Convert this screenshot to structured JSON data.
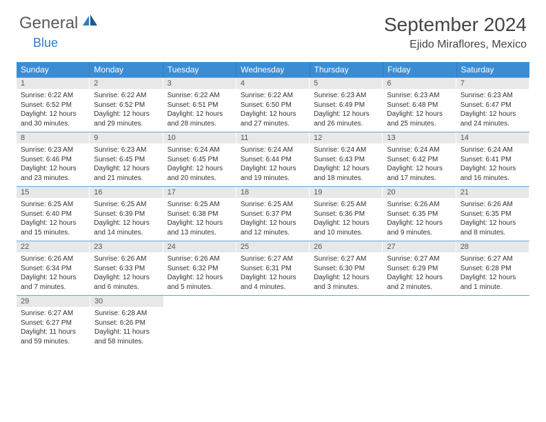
{
  "logo": {
    "text1": "General",
    "text2": "Blue",
    "text_color": "#5a5a5a",
    "accent_color": "#2e7cc4"
  },
  "title": "September 2024",
  "location": "Ejido Miraflores, Mexico",
  "header_bg": "#3a8dd4",
  "daynum_bg": "#e8e8e8",
  "row_border": "#6da4d4",
  "weekdays": [
    "Sunday",
    "Monday",
    "Tuesday",
    "Wednesday",
    "Thursday",
    "Friday",
    "Saturday"
  ],
  "days": [
    {
      "n": "1",
      "sunrise": "Sunrise: 6:22 AM",
      "sunset": "Sunset: 6:52 PM",
      "day1": "Daylight: 12 hours",
      "day2": "and 30 minutes."
    },
    {
      "n": "2",
      "sunrise": "Sunrise: 6:22 AM",
      "sunset": "Sunset: 6:52 PM",
      "day1": "Daylight: 12 hours",
      "day2": "and 29 minutes."
    },
    {
      "n": "3",
      "sunrise": "Sunrise: 6:22 AM",
      "sunset": "Sunset: 6:51 PM",
      "day1": "Daylight: 12 hours",
      "day2": "and 28 minutes."
    },
    {
      "n": "4",
      "sunrise": "Sunrise: 6:22 AM",
      "sunset": "Sunset: 6:50 PM",
      "day1": "Daylight: 12 hours",
      "day2": "and 27 minutes."
    },
    {
      "n": "5",
      "sunrise": "Sunrise: 6:23 AM",
      "sunset": "Sunset: 6:49 PM",
      "day1": "Daylight: 12 hours",
      "day2": "and 26 minutes."
    },
    {
      "n": "6",
      "sunrise": "Sunrise: 6:23 AM",
      "sunset": "Sunset: 6:48 PM",
      "day1": "Daylight: 12 hours",
      "day2": "and 25 minutes."
    },
    {
      "n": "7",
      "sunrise": "Sunrise: 6:23 AM",
      "sunset": "Sunset: 6:47 PM",
      "day1": "Daylight: 12 hours",
      "day2": "and 24 minutes."
    },
    {
      "n": "8",
      "sunrise": "Sunrise: 6:23 AM",
      "sunset": "Sunset: 6:46 PM",
      "day1": "Daylight: 12 hours",
      "day2": "and 23 minutes."
    },
    {
      "n": "9",
      "sunrise": "Sunrise: 6:23 AM",
      "sunset": "Sunset: 6:45 PM",
      "day1": "Daylight: 12 hours",
      "day2": "and 21 minutes."
    },
    {
      "n": "10",
      "sunrise": "Sunrise: 6:24 AM",
      "sunset": "Sunset: 6:45 PM",
      "day1": "Daylight: 12 hours",
      "day2": "and 20 minutes."
    },
    {
      "n": "11",
      "sunrise": "Sunrise: 6:24 AM",
      "sunset": "Sunset: 6:44 PM",
      "day1": "Daylight: 12 hours",
      "day2": "and 19 minutes."
    },
    {
      "n": "12",
      "sunrise": "Sunrise: 6:24 AM",
      "sunset": "Sunset: 6:43 PM",
      "day1": "Daylight: 12 hours",
      "day2": "and 18 minutes."
    },
    {
      "n": "13",
      "sunrise": "Sunrise: 6:24 AM",
      "sunset": "Sunset: 6:42 PM",
      "day1": "Daylight: 12 hours",
      "day2": "and 17 minutes."
    },
    {
      "n": "14",
      "sunrise": "Sunrise: 6:24 AM",
      "sunset": "Sunset: 6:41 PM",
      "day1": "Daylight: 12 hours",
      "day2": "and 16 minutes."
    },
    {
      "n": "15",
      "sunrise": "Sunrise: 6:25 AM",
      "sunset": "Sunset: 6:40 PM",
      "day1": "Daylight: 12 hours",
      "day2": "and 15 minutes."
    },
    {
      "n": "16",
      "sunrise": "Sunrise: 6:25 AM",
      "sunset": "Sunset: 6:39 PM",
      "day1": "Daylight: 12 hours",
      "day2": "and 14 minutes."
    },
    {
      "n": "17",
      "sunrise": "Sunrise: 6:25 AM",
      "sunset": "Sunset: 6:38 PM",
      "day1": "Daylight: 12 hours",
      "day2": "and 13 minutes."
    },
    {
      "n": "18",
      "sunrise": "Sunrise: 6:25 AM",
      "sunset": "Sunset: 6:37 PM",
      "day1": "Daylight: 12 hours",
      "day2": "and 12 minutes."
    },
    {
      "n": "19",
      "sunrise": "Sunrise: 6:25 AM",
      "sunset": "Sunset: 6:36 PM",
      "day1": "Daylight: 12 hours",
      "day2": "and 10 minutes."
    },
    {
      "n": "20",
      "sunrise": "Sunrise: 6:26 AM",
      "sunset": "Sunset: 6:35 PM",
      "day1": "Daylight: 12 hours",
      "day2": "and 9 minutes."
    },
    {
      "n": "21",
      "sunrise": "Sunrise: 6:26 AM",
      "sunset": "Sunset: 6:35 PM",
      "day1": "Daylight: 12 hours",
      "day2": "and 8 minutes."
    },
    {
      "n": "22",
      "sunrise": "Sunrise: 6:26 AM",
      "sunset": "Sunset: 6:34 PM",
      "day1": "Daylight: 12 hours",
      "day2": "and 7 minutes."
    },
    {
      "n": "23",
      "sunrise": "Sunrise: 6:26 AM",
      "sunset": "Sunset: 6:33 PM",
      "day1": "Daylight: 12 hours",
      "day2": "and 6 minutes."
    },
    {
      "n": "24",
      "sunrise": "Sunrise: 6:26 AM",
      "sunset": "Sunset: 6:32 PM",
      "day1": "Daylight: 12 hours",
      "day2": "and 5 minutes."
    },
    {
      "n": "25",
      "sunrise": "Sunrise: 6:27 AM",
      "sunset": "Sunset: 6:31 PM",
      "day1": "Daylight: 12 hours",
      "day2": "and 4 minutes."
    },
    {
      "n": "26",
      "sunrise": "Sunrise: 6:27 AM",
      "sunset": "Sunset: 6:30 PM",
      "day1": "Daylight: 12 hours",
      "day2": "and 3 minutes."
    },
    {
      "n": "27",
      "sunrise": "Sunrise: 6:27 AM",
      "sunset": "Sunset: 6:29 PM",
      "day1": "Daylight: 12 hours",
      "day2": "and 2 minutes."
    },
    {
      "n": "28",
      "sunrise": "Sunrise: 6:27 AM",
      "sunset": "Sunset: 6:28 PM",
      "day1": "Daylight: 12 hours",
      "day2": "and 1 minute."
    },
    {
      "n": "29",
      "sunrise": "Sunrise: 6:27 AM",
      "sunset": "Sunset: 6:27 PM",
      "day1": "Daylight: 11 hours",
      "day2": "and 59 minutes."
    },
    {
      "n": "30",
      "sunrise": "Sunrise: 6:28 AM",
      "sunset": "Sunset: 6:26 PM",
      "day1": "Daylight: 11 hours",
      "day2": "and 58 minutes."
    }
  ]
}
